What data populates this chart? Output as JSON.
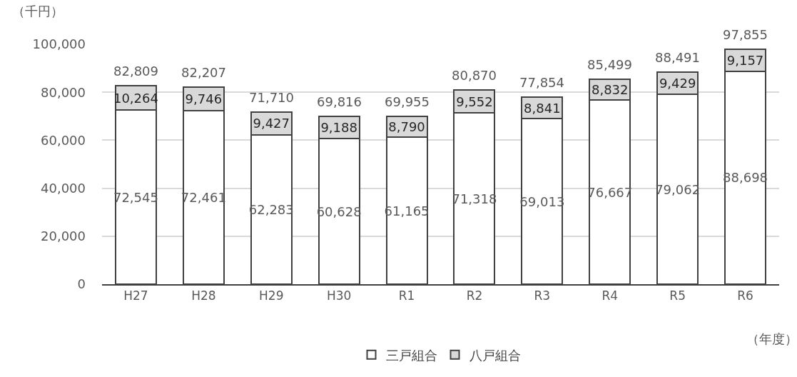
{
  "chart_data": {
    "type": "bar",
    "stacked": true,
    "ylabel": "（千円）",
    "xlabel": "（年度）",
    "categories": [
      "H27",
      "H28",
      "H29",
      "H30",
      "R1",
      "R2",
      "R3",
      "R4",
      "R5",
      "R6"
    ],
    "series": [
      {
        "name": "三戸組合",
        "color": "#ffffff",
        "values": [
          72545,
          72461,
          62283,
          60628,
          61165,
          71318,
          69013,
          76667,
          79062,
          88698
        ],
        "value_labels": [
          "72,545",
          "72,461",
          "62,283",
          "60,628",
          "61,165",
          "71,318",
          "69,013",
          "76,667",
          "79,062",
          "88,698"
        ]
      },
      {
        "name": "八戸組合",
        "color": "#d9d9d9",
        "values": [
          10264,
          9746,
          9427,
          9188,
          8790,
          9552,
          8841,
          8832,
          9429,
          9157
        ],
        "value_labels": [
          "10,264",
          "9,746",
          "9,427",
          "9,188",
          "8,790",
          "9,552",
          "8,841",
          "8,832",
          "9,429",
          "9,157"
        ]
      }
    ],
    "totals": [
      "82,809",
      "82,207",
      "71,710",
      "69,816",
      "69,955",
      "80,870",
      "77,854",
      "85,499",
      "88,491",
      "97,855"
    ],
    "ylim": [
      0,
      100000
    ],
    "yticks": [
      {
        "value": 0,
        "label": "0"
      },
      {
        "value": 20000,
        "label": "20,000"
      },
      {
        "value": 40000,
        "label": "40,000"
      },
      {
        "value": 60000,
        "label": "60,000"
      },
      {
        "value": 80000,
        "label": "80,000"
      },
      {
        "value": 100000,
        "label": "100,000"
      }
    ],
    "grid": "y",
    "legend": "bottom"
  }
}
